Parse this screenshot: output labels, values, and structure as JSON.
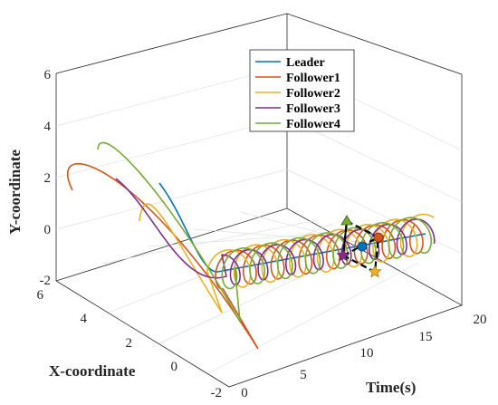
{
  "chart_data": {
    "type": "line",
    "projection": "3d",
    "xlabel": "X-coordinate",
    "ylabel": "Y-coordinate",
    "tlabel": "Time(s)",
    "x_ticks": [
      "-2",
      "0",
      "2",
      "4",
      "6"
    ],
    "y_ticks": [
      "-2",
      "0",
      "2",
      "4",
      "6"
    ],
    "t_ticks": [
      "0",
      "5",
      "10",
      "15",
      "20"
    ],
    "xlim": [
      -2,
      6
    ],
    "ylim": [
      -2,
      6
    ],
    "tlim": [
      0,
      20
    ],
    "grid": true,
    "legend_position": "top-center",
    "series": [
      {
        "name": "Leader",
        "color": "#0072BD"
      },
      {
        "name": "Follower1",
        "color": "#D95319"
      },
      {
        "name": "Follower2",
        "color": "#EDB120"
      },
      {
        "name": "Follower3",
        "color": "#7E2F8E"
      },
      {
        "name": "Follower4",
        "color": "#77AC30"
      }
    ],
    "formation_markers": [
      {
        "series": "Leader",
        "shape": "circle",
        "color": "#0072BD"
      },
      {
        "series": "Follower1",
        "shape": "circle",
        "color": "#D95319"
      },
      {
        "series": "Follower2",
        "shape": "star",
        "color": "#EDB120"
      },
      {
        "series": "Follower3",
        "shape": "star",
        "color": "#7E2F8E"
      },
      {
        "series": "Follower4",
        "shape": "triangle",
        "color": "#77AC30"
      }
    ]
  }
}
